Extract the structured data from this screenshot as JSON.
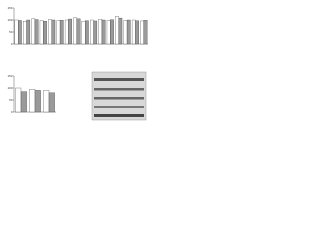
{
  "chart_data": [
    {
      "type": "bar",
      "categories": [
        null,
        null,
        null,
        null,
        null,
        null,
        null,
        null,
        null,
        null,
        null,
        null,
        null,
        null,
        null,
        null
      ],
      "series": [
        {
          "color": "#ffffff",
          "values": [
            100,
            95,
            105,
            98,
            102,
            97,
            100,
            110,
            95,
            100,
            103,
            99,
            115,
            98,
            100,
            96
          ]
        },
        {
          "color": "#9a9a9a",
          "values": [
            98,
            100,
            102,
            95,
            100,
            99,
            104,
            105,
            97,
            96,
            100,
            101,
            108,
            100,
            97,
            99
          ]
        }
      ],
      "ylim": [
        0,
        150
      ],
      "yticks": [
        0,
        50,
        100,
        150
      ]
    },
    {
      "type": "bar",
      "categories": [
        null,
        null,
        null
      ],
      "series": [
        {
          "color": "#ffffff",
          "values": [
            100,
            95,
            90
          ]
        },
        {
          "color": "#9a9a9a",
          "values": [
            85,
            90,
            80
          ]
        }
      ],
      "ylim": [
        0,
        150
      ],
      "yticks": [
        0,
        50,
        100,
        150
      ]
    }
  ]
}
